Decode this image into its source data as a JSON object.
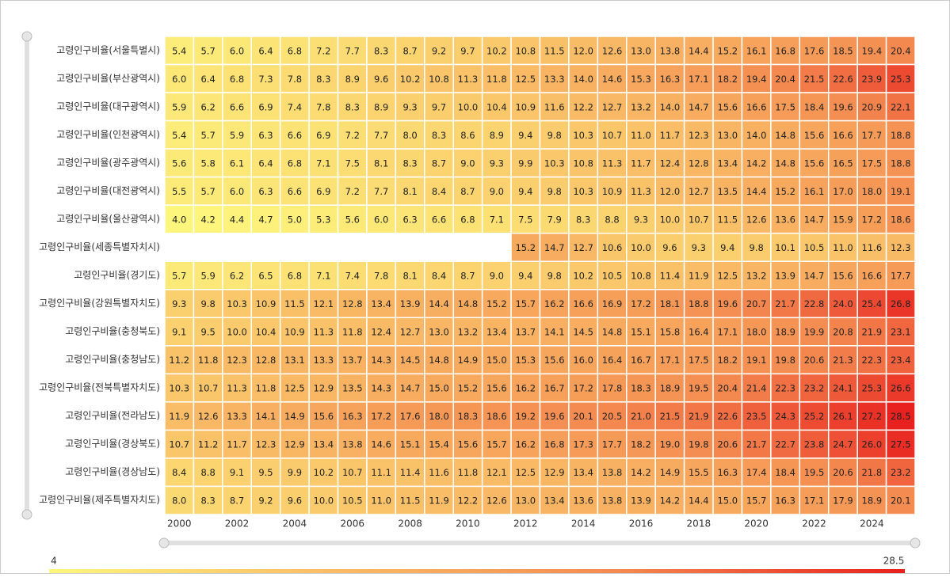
{
  "chart_data": {
    "type": "heatmap",
    "x_categories": [
      "2000",
      null,
      "2002",
      null,
      "2004",
      null,
      "2006",
      null,
      "2008",
      null,
      "2010",
      null,
      "2012",
      null,
      "2014",
      null,
      "2016",
      null,
      "2018",
      null,
      "2020",
      null,
      "2022",
      null,
      "2024",
      null
    ],
    "visualmap": {
      "min": 4,
      "max": 28.5,
      "colors": [
        "#fdf67d",
        "#f9bb66",
        "#f48a50",
        "#e8201e"
      ]
    },
    "series": [
      {
        "name": "고령인구비율(서울특별시)",
        "values": [
          5.4,
          5.7,
          6.0,
          6.4,
          6.8,
          7.2,
          7.7,
          8.3,
          8.7,
          9.2,
          9.7,
          10.2,
          10.8,
          11.5,
          12.0,
          12.6,
          13.0,
          13.8,
          14.4,
          15.2,
          16.1,
          16.8,
          17.6,
          18.5,
          19.4,
          20.4
        ],
        "value_labels": [
          "5.4",
          "5.7",
          "6.0",
          "6.4",
          "6.8",
          "7.2",
          "7.7",
          "8.3",
          "8.7",
          "9.2",
          "9.7",
          "10.2",
          "10.8",
          "11.5",
          "12.0",
          "12.6",
          "13.0",
          "13.8",
          "14.4",
          "15.2",
          "16.1",
          "16.8",
          "17.6",
          "18.5",
          "19.4",
          "20.4"
        ]
      },
      {
        "name": "고령인구비율(부산광역시)",
        "values": [
          6.0,
          6.4,
          6.8,
          7.3,
          7.8,
          8.3,
          8.9,
          9.6,
          10.2,
          10.8,
          11.3,
          11.8,
          12.5,
          13.3,
          14.0,
          14.6,
          15.3,
          16.3,
          17.1,
          18.2,
          19.4,
          20.4,
          21.5,
          22.6,
          23.9,
          25.3
        ],
        "value_labels": [
          "6.0",
          "6.4",
          "6.8",
          "7.3",
          "7.8",
          "8.3",
          "8.9",
          "9.6",
          "10.2",
          "10.8",
          "11.3",
          "11.8",
          "12.5",
          "13.3",
          "14.0",
          "14.6",
          "15.3",
          "16.3",
          "17.1",
          "18.2",
          "19.4",
          "20.4",
          "21.5",
          "22.6",
          "23.9",
          "25.3"
        ]
      },
      {
        "name": "고령인구비율(대구광역시)",
        "values": [
          5.9,
          6.2,
          6.6,
          6.9,
          7.4,
          7.8,
          8.3,
          8.9,
          9.3,
          9.7,
          10.0,
          10.4,
          10.9,
          11.6,
          12.2,
          12.7,
          13.2,
          14.0,
          14.7,
          15.6,
          16.6,
          17.5,
          18.4,
          19.6,
          20.9,
          22.1
        ],
        "value_labels": [
          "5.9",
          "6.2",
          "6.6",
          "6.9",
          "7.4",
          "7.8",
          "8.3",
          "8.9",
          "9.3",
          "9.7",
          "10.0",
          "10.4",
          "10.9",
          "11.6",
          "12.2",
          "12.7",
          "13.2",
          "14.0",
          "14.7",
          "15.6",
          "16.6",
          "17.5",
          "18.4",
          "19.6",
          "20.9",
          "22.1"
        ]
      },
      {
        "name": "고령인구비율(인천광역시)",
        "values": [
          5.4,
          5.7,
          5.9,
          6.3,
          6.6,
          6.9,
          7.2,
          7.7,
          8.0,
          8.3,
          8.6,
          8.9,
          9.4,
          9.8,
          10.3,
          10.7,
          11.0,
          11.7,
          12.3,
          13.0,
          14.0,
          14.8,
          15.6,
          16.6,
          17.7,
          18.8
        ],
        "value_labels": [
          "5.4",
          "5.7",
          "5.9",
          "6.3",
          "6.6",
          "6.9",
          "7.2",
          "7.7",
          "8.0",
          "8.3",
          "8.6",
          "8.9",
          "9.4",
          "9.8",
          "10.3",
          "10.7",
          "11.0",
          "11.7",
          "12.3",
          "13.0",
          "14.0",
          "14.8",
          "15.6",
          "16.6",
          "17.7",
          "18.8"
        ]
      },
      {
        "name": "고령인구비율(광주광역시)",
        "values": [
          5.6,
          5.8,
          6.1,
          6.4,
          6.8,
          7.1,
          7.5,
          8.1,
          8.3,
          8.7,
          9.0,
          9.3,
          9.9,
          10.3,
          10.8,
          11.3,
          11.7,
          12.4,
          12.8,
          13.4,
          14.2,
          14.8,
          15.6,
          16.5,
          17.5,
          18.8
        ],
        "value_labels": [
          "5.6",
          "5.8",
          "6.1",
          "6.4",
          "6.8",
          "7.1",
          "7.5",
          "8.1",
          "8.3",
          "8.7",
          "9.0",
          "9.3",
          "9.9",
          "10.3",
          "10.8",
          "11.3",
          "11.7",
          "12.4",
          "12.8",
          "13.4",
          "14.2",
          "14.8",
          "15.6",
          "16.5",
          "17.5",
          "18.8"
        ]
      },
      {
        "name": "고령인구비율(대전광역시)",
        "values": [
          5.5,
          5.7,
          6.0,
          6.3,
          6.6,
          6.9,
          7.2,
          7.7,
          8.1,
          8.4,
          8.7,
          9.0,
          9.4,
          9.8,
          10.3,
          10.9,
          11.3,
          12.0,
          12.7,
          13.5,
          14.4,
          15.2,
          16.1,
          17.0,
          18.0,
          19.1
        ],
        "value_labels": [
          "5.5",
          "5.7",
          "6.0",
          "6.3",
          "6.6",
          "6.9",
          "7.2",
          "7.7",
          "8.1",
          "8.4",
          "8.7",
          "9.0",
          "9.4",
          "9.8",
          "10.3",
          "10.9",
          "11.3",
          "12.0",
          "12.7",
          "13.5",
          "14.4",
          "15.2",
          "16.1",
          "17.0",
          "18.0",
          "19.1"
        ]
      },
      {
        "name": "고령인구비율(울산광역시)",
        "values": [
          4.0,
          4.2,
          4.4,
          4.7,
          5.0,
          5.3,
          5.6,
          6.0,
          6.3,
          6.6,
          6.8,
          7.1,
          7.5,
          7.9,
          8.3,
          8.8,
          9.3,
          10.0,
          10.7,
          11.5,
          12.6,
          13.6,
          14.7,
          15.9,
          17.2,
          18.6
        ],
        "value_labels": [
          "4.0",
          "4.2",
          "4.4",
          "4.7",
          "5.0",
          "5.3",
          "5.6",
          "6.0",
          "6.3",
          "6.6",
          "6.8",
          "7.1",
          "7.5",
          "7.9",
          "8.3",
          "8.8",
          "9.3",
          "10.0",
          "10.7",
          "11.5",
          "12.6",
          "13.6",
          "14.7",
          "15.9",
          "17.2",
          "18.6"
        ]
      },
      {
        "name": "고령인구비율(세종특별자치시)",
        "values": [
          null,
          null,
          null,
          null,
          null,
          null,
          null,
          null,
          null,
          null,
          null,
          null,
          15.2,
          14.7,
          12.7,
          10.6,
          10.0,
          9.6,
          9.3,
          9.4,
          9.8,
          10.1,
          10.5,
          11.0,
          11.6,
          12.3
        ],
        "value_labels": [
          null,
          null,
          null,
          null,
          null,
          null,
          null,
          null,
          null,
          null,
          null,
          null,
          "15.2",
          "14.7",
          "12.7",
          "10.6",
          "10.0",
          "9.6",
          "9.3",
          "9.4",
          "9.8",
          "10.1",
          "10.5",
          "11.0",
          "11.6",
          "12.3"
        ]
      },
      {
        "name": "고령인구비율(경기도)",
        "values": [
          5.7,
          5.9,
          6.2,
          6.5,
          6.8,
          7.1,
          7.4,
          7.8,
          8.1,
          8.4,
          8.7,
          9.0,
          9.4,
          9.8,
          10.2,
          10.5,
          10.8,
          11.4,
          11.9,
          12.5,
          13.2,
          13.9,
          14.7,
          15.6,
          16.6,
          17.7
        ],
        "value_labels": [
          "5.7",
          "5.9",
          "6.2",
          "6.5",
          "6.8",
          "7.1",
          "7.4",
          "7.8",
          "8.1",
          "8.4",
          "8.7",
          "9.0",
          "9.4",
          "9.8",
          "10.2",
          "10.5",
          "10.8",
          "11.4",
          "11.9",
          "12.5",
          "13.2",
          "13.9",
          "14.7",
          "15.6",
          "16.6",
          "17.7"
        ]
      },
      {
        "name": "고령인구비율(강원특별자치도)",
        "values": [
          9.3,
          9.8,
          10.3,
          10.9,
          11.5,
          12.1,
          12.8,
          13.4,
          13.9,
          14.4,
          14.8,
          15.2,
          15.7,
          16.2,
          16.6,
          16.9,
          17.2,
          18.1,
          18.8,
          19.6,
          20.7,
          21.7,
          22.8,
          24.0,
          25.4,
          26.8
        ],
        "value_labels": [
          "9.3",
          "9.8",
          "10.3",
          "10.9",
          "11.5",
          "12.1",
          "12.8",
          "13.4",
          "13.9",
          "14.4",
          "14.8",
          "15.2",
          "15.7",
          "16.2",
          "16.6",
          "16.9",
          "17.2",
          "18.1",
          "18.8",
          "19.6",
          "20.7",
          "21.7",
          "22.8",
          "24.0",
          "25.4",
          "26.8"
        ]
      },
      {
        "name": "고령인구비율(충청북도)",
        "values": [
          9.1,
          9.5,
          10.0,
          10.4,
          10.9,
          11.3,
          11.8,
          12.4,
          12.7,
          13.0,
          13.2,
          13.4,
          13.7,
          14.1,
          14.5,
          14.8,
          15.1,
          15.8,
          16.4,
          17.1,
          18.0,
          18.9,
          19.9,
          20.8,
          21.9,
          23.1
        ],
        "value_labels": [
          "9.1",
          "9.5",
          "10.0",
          "10.4",
          "10.9",
          "11.3",
          "11.8",
          "12.4",
          "12.7",
          "13.0",
          "13.2",
          "13.4",
          "13.7",
          "14.1",
          "14.5",
          "14.8",
          "15.1",
          "15.8",
          "16.4",
          "17.1",
          "18.0",
          "18.9",
          "19.9",
          "20.8",
          "21.9",
          "23.1"
        ]
      },
      {
        "name": "고령인구비율(충청남도)",
        "values": [
          11.2,
          11.8,
          12.3,
          12.8,
          13.1,
          13.3,
          13.7,
          14.3,
          14.5,
          14.8,
          14.9,
          15.0,
          15.3,
          15.6,
          16.0,
          16.4,
          16.7,
          17.1,
          17.5,
          18.2,
          19.1,
          19.8,
          20.6,
          21.3,
          22.3,
          23.4
        ],
        "value_labels": [
          "11.2",
          "11.8",
          "12.3",
          "12.8",
          "13.1",
          "13.3",
          "13.7",
          "14.3",
          "14.5",
          "14.8",
          "14.9",
          "15.0",
          "15.3",
          "15.6",
          "16.0",
          "16.4",
          "16.7",
          "17.1",
          "17.5",
          "18.2",
          "19.1",
          "19.8",
          "20.6",
          "21.3",
          "22.3",
          "23.4"
        ]
      },
      {
        "name": "고령인구비율(전북특별자치도)",
        "values": [
          10.3,
          10.7,
          11.3,
          11.8,
          12.5,
          12.9,
          13.5,
          14.3,
          14.7,
          15.0,
          15.2,
          15.6,
          16.2,
          16.7,
          17.2,
          17.8,
          18.3,
          18.9,
          19.5,
          20.4,
          21.4,
          22.3,
          23.2,
          24.1,
          25.3,
          26.6
        ],
        "value_labels": [
          "10.3",
          "10.7",
          "11.3",
          "11.8",
          "12.5",
          "12.9",
          "13.5",
          "14.3",
          "14.7",
          "15.0",
          "15.2",
          "15.6",
          "16.2",
          "16.7",
          "17.2",
          "17.8",
          "18.3",
          "18.9",
          "19.5",
          "20.4",
          "21.4",
          "22.3",
          "23.2",
          "24.1",
          "25.3",
          "26.6"
        ]
      },
      {
        "name": "고령인구비율(전라남도)",
        "values": [
          11.9,
          12.6,
          13.3,
          14.1,
          14.9,
          15.6,
          16.3,
          17.2,
          17.6,
          18.0,
          18.3,
          18.6,
          19.2,
          19.6,
          20.1,
          20.5,
          21.0,
          21.5,
          21.9,
          22.6,
          23.5,
          24.3,
          25.2,
          26.1,
          27.2,
          28.5
        ],
        "value_labels": [
          "11.9",
          "12.6",
          "13.3",
          "14.1",
          "14.9",
          "15.6",
          "16.3",
          "17.2",
          "17.6",
          "18.0",
          "18.3",
          "18.6",
          "19.2",
          "19.6",
          "20.1",
          "20.5",
          "21.0",
          "21.5",
          "21.9",
          "22.6",
          "23.5",
          "24.3",
          "25.2",
          "26.1",
          "27.2",
          "28.5"
        ]
      },
      {
        "name": "고령인구비율(경상북도)",
        "values": [
          10.7,
          11.2,
          11.7,
          12.3,
          12.9,
          13.4,
          13.8,
          14.6,
          15.1,
          15.4,
          15.6,
          15.7,
          16.2,
          16.8,
          17.3,
          17.7,
          18.2,
          19.0,
          19.8,
          20.6,
          21.7,
          22.7,
          23.8,
          24.7,
          26.0,
          27.5
        ],
        "value_labels": [
          "10.7",
          "11.2",
          "11.7",
          "12.3",
          "12.9",
          "13.4",
          "13.8",
          "14.6",
          "15.1",
          "15.4",
          "15.6",
          "15.7",
          "16.2",
          "16.8",
          "17.3",
          "17.7",
          "18.2",
          "19.0",
          "19.8",
          "20.6",
          "21.7",
          "22.7",
          "23.8",
          "24.7",
          "26.0",
          "27.5"
        ]
      },
      {
        "name": "고령인구비율(경상남도)",
        "values": [
          8.4,
          8.8,
          9.1,
          9.5,
          9.9,
          10.2,
          10.7,
          11.1,
          11.4,
          11.6,
          11.8,
          12.1,
          12.5,
          12.9,
          13.4,
          13.8,
          14.2,
          14.9,
          15.5,
          16.3,
          17.4,
          18.4,
          19.5,
          20.6,
          21.8,
          23.2
        ],
        "value_labels": [
          "8.4",
          "8.8",
          "9.1",
          "9.5",
          "9.9",
          "10.2",
          "10.7",
          "11.1",
          "11.4",
          "11.6",
          "11.8",
          "12.1",
          "12.5",
          "12.9",
          "13.4",
          "13.8",
          "14.2",
          "14.9",
          "15.5",
          "16.3",
          "17.4",
          "18.4",
          "19.5",
          "20.6",
          "21.8",
          "23.2"
        ]
      },
      {
        "name": "고령인구비율(제주특별자치도)",
        "values": [
          8.0,
          8.3,
          8.7,
          9.2,
          9.6,
          10.0,
          10.5,
          11.0,
          11.5,
          11.9,
          12.2,
          12.6,
          13.0,
          13.4,
          13.6,
          13.8,
          13.9,
          14.2,
          14.4,
          15.0,
          15.7,
          16.3,
          17.1,
          17.9,
          18.9,
          20.1
        ],
        "value_labels": [
          "8.0",
          "8.3",
          "8.7",
          "9.2",
          "9.6",
          "10.0",
          "10.5",
          "11.0",
          "11.5",
          "11.9",
          "12.2",
          "12.6",
          "13.0",
          "13.4",
          "13.6",
          "13.8",
          "13.9",
          "14.2",
          "14.4",
          "15.0",
          "15.7",
          "16.3",
          "17.1",
          "17.9",
          "18.9",
          "20.1"
        ]
      }
    ]
  }
}
